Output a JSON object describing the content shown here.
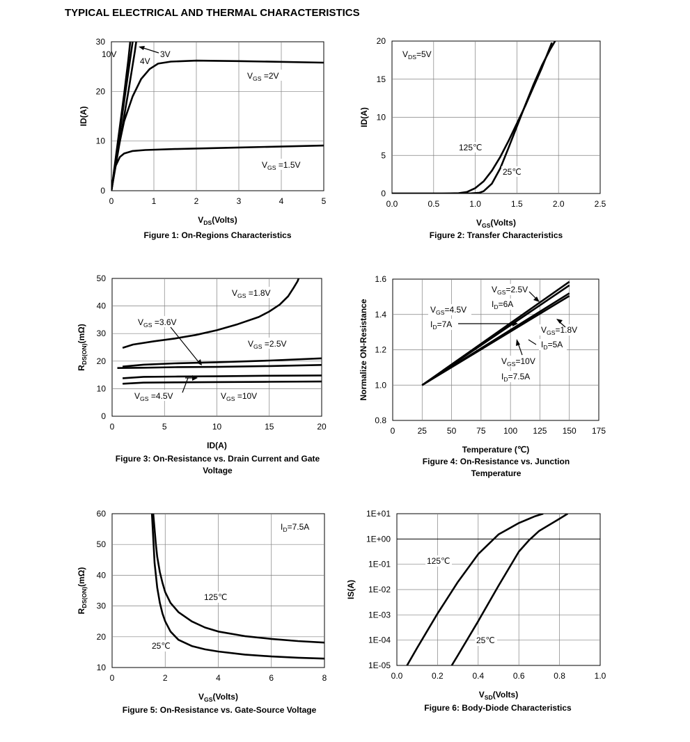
{
  "page_title": "TYPICAL ELECTRICAL AND THERMAL CHARACTERISTICS",
  "chart_data": [
    {
      "id": "fig1",
      "type": "line",
      "caption": "Figure 1: On-Regions Characteristics",
      "xlabel": "VDS(Volts)",
      "ylabel": "ID(A)",
      "xlim": [
        0,
        5
      ],
      "ylim": [
        0,
        30
      ],
      "xticks": [
        "0",
        "1",
        "2",
        "3",
        "4",
        "5"
      ],
      "yticks": [
        "0",
        "10",
        "20",
        "30"
      ],
      "grid": true,
      "series": [
        {
          "name": "VGS =1.5V",
          "x": [
            0,
            0.05,
            0.1,
            0.2,
            0.3,
            0.5,
            0.8,
            1.5,
            3,
            5
          ],
          "y": [
            0,
            3,
            5,
            6.8,
            7.5,
            8,
            8.2,
            8.4,
            8.7,
            9.1
          ]
        },
        {
          "name": "VGS =2V",
          "x": [
            0,
            0.15,
            0.3,
            0.5,
            0.7,
            0.9,
            1.1,
            1.4,
            2,
            3,
            5
          ],
          "y": [
            0,
            8,
            14,
            19,
            22.5,
            24.5,
            25.6,
            26,
            26.2,
            26.1,
            25.8
          ]
        },
        {
          "name": "3V",
          "x": [
            0,
            0.1,
            0.2,
            0.3,
            0.4,
            0.55,
            0.6
          ],
          "y": [
            0,
            5,
            10,
            15,
            20,
            28,
            31
          ]
        },
        {
          "name": "4V",
          "x": [
            0,
            0.1,
            0.2,
            0.3,
            0.4,
            0.5,
            0.55
          ],
          "y": [
            0,
            6,
            12,
            18,
            24,
            30,
            32
          ]
        },
        {
          "name": "10V",
          "x": [
            0,
            0.1,
            0.2,
            0.3,
            0.4,
            0.45
          ],
          "y": [
            0,
            6.5,
            13,
            19.5,
            26.5,
            30.5
          ]
        }
      ],
      "annotations": [
        "10V",
        "4V",
        "3V",
        "VGS =2V",
        "VGS =1.5V"
      ]
    },
    {
      "id": "fig2",
      "type": "line",
      "caption": "Figure 2: Transfer Characteristics",
      "xlabel": "VGS(Volts)",
      "ylabel": "ID(A)",
      "xlim": [
        0,
        2.5
      ],
      "ylim": [
        0,
        20
      ],
      "xticks": [
        "0.0",
        "0.5",
        "1.0",
        "1.5",
        "2.0",
        "2.5"
      ],
      "yticks": [
        "0",
        "5",
        "10",
        "15",
        "20"
      ],
      "grid": true,
      "series": [
        {
          "name": "125℃",
          "x": [
            0,
            0.6,
            0.8,
            0.9,
            1.0,
            1.1,
            1.2,
            1.3,
            1.4,
            1.5,
            1.6,
            1.7,
            1.8,
            1.92
          ],
          "y": [
            0,
            0,
            0.05,
            0.2,
            0.7,
            1.6,
            3.0,
            4.8,
            6.9,
            9.2,
            11.5,
            14.0,
            16.5,
            19.8
          ]
        },
        {
          "name": "25℃",
          "x": [
            0,
            0.8,
            0.95,
            1.05,
            1.1,
            1.2,
            1.3,
            1.4,
            1.5,
            1.6,
            1.7,
            1.8,
            1.9,
            1.98
          ],
          "y": [
            0,
            0,
            0.02,
            0.1,
            0.3,
            1.3,
            3.3,
            6.0,
            8.8,
            11.6,
            14.3,
            16.8,
            18.9,
            20.4
          ]
        }
      ],
      "annotations": [
        "VDS=5V",
        "125℃",
        "25℃"
      ]
    },
    {
      "id": "fig3",
      "type": "line",
      "caption": "Figure 3: On-Resistance vs. Drain Current and Gate Voltage",
      "xlabel": "ID(A)",
      "ylabel": "RDS(ON)(mΩ)",
      "xlim": [
        0,
        20
      ],
      "ylim": [
        0,
        50
      ],
      "xticks": [
        "0",
        "5",
        "10",
        "15",
        "20"
      ],
      "yticks": [
        "0",
        "10",
        "20",
        "30",
        "40",
        "50"
      ],
      "grid": true,
      "series": [
        {
          "name": "VGS =1.8V",
          "x": [
            1,
            2,
            4,
            6,
            8,
            10,
            12,
            14,
            15,
            16,
            16.8,
            17.3,
            17.7,
            18
          ],
          "y": [
            24.8,
            26,
            27.2,
            28.2,
            29.5,
            31.2,
            33.4,
            36,
            38,
            40.5,
            43.5,
            46.5,
            49,
            52
          ]
        },
        {
          "name": "VGS =2.5V",
          "x": [
            1,
            3,
            6,
            10,
            15,
            20
          ],
          "y": [
            18,
            18.7,
            19.2,
            19.6,
            20.2,
            21
          ]
        },
        {
          "name": "VGS =3.6V",
          "x": [
            0.5,
            3,
            6,
            10,
            15,
            20
          ],
          "y": [
            17.5,
            17.6,
            17.8,
            17.9,
            18.2,
            18.6
          ]
        },
        {
          "name": "VGS =4.5V",
          "x": [
            1,
            3,
            6,
            10,
            15,
            20
          ],
          "y": [
            13.8,
            14.3,
            14.4,
            14.5,
            14.7,
            14.8
          ]
        },
        {
          "name": "VGS =10V",
          "x": [
            1,
            3,
            6,
            10,
            15,
            20
          ],
          "y": [
            11.8,
            12.2,
            12.3,
            12.4,
            12.5,
            12.6
          ]
        }
      ],
      "annotations": [
        "VGS =1.8V",
        "VGS =3.6V",
        "VGS =2.5V",
        "VGS =4.5V",
        "VGS =10V"
      ]
    },
    {
      "id": "fig4",
      "type": "line",
      "caption": "Figure 4: On-Resistance vs. Junction Temperature",
      "xlabel": "Temperature (℃)",
      "ylabel": "Normalize ON-Resistance",
      "xlim": [
        0,
        175
      ],
      "ylim": [
        0.8,
        1.6
      ],
      "xticks": [
        "0",
        "25",
        "50",
        "75",
        "100",
        "125",
        "150",
        "175"
      ],
      "yticks": [
        "0.8",
        "1.0",
        "1.2",
        "1.4",
        "1.6"
      ],
      "grid": true,
      "series": [
        {
          "name": "VGS=2.5V ID=6A",
          "x": [
            25,
            150
          ],
          "y": [
            1.0,
            1.585
          ]
        },
        {
          "name": "VGS=4.5V ID=7A",
          "x": [
            25,
            150
          ],
          "y": [
            1.0,
            1.565
          ]
        },
        {
          "name": "VGS=1.8V ID=5A",
          "x": [
            25,
            150
          ],
          "y": [
            1.0,
            1.52
          ]
        },
        {
          "name": "VGS=10V ID=7.5A",
          "x": [
            25,
            150
          ],
          "y": [
            1.0,
            1.505
          ]
        }
      ],
      "annotations": [
        "VGS=2.5V",
        "ID=6A",
        "VGS=4.5V",
        "ID=7A",
        "VGS=1.8V",
        "ID=5A",
        "VGS=10V",
        "ID=7.5A"
      ]
    },
    {
      "id": "fig5",
      "type": "line",
      "caption": "Figure 5: On-Resistance vs. Gate-Source Voltage",
      "xlabel": "VGS(Volts)",
      "ylabel": "RDS(ON)(mΩ)",
      "xlim": [
        0,
        8
      ],
      "ylim": [
        10,
        60
      ],
      "xticks": [
        "0",
        "2",
        "4",
        "6",
        "8"
      ],
      "yticks": [
        "10",
        "20",
        "30",
        "40",
        "50",
        "60"
      ],
      "grid": true,
      "series": [
        {
          "name": "125℃",
          "x": [
            1.55,
            1.6,
            1.65,
            1.7,
            1.8,
            1.9,
            2.0,
            2.2,
            2.5,
            3,
            3.5,
            4,
            5,
            6,
            7,
            8
          ],
          "y": [
            60,
            55,
            50,
            46,
            41,
            37.5,
            34.5,
            31,
            28,
            25,
            23,
            21.7,
            20.2,
            19.3,
            18.6,
            18.1
          ]
        },
        {
          "name": "25℃",
          "x": [
            1.5,
            1.55,
            1.6,
            1.7,
            1.8,
            1.9,
            2.0,
            2.2,
            2.5,
            3,
            3.5,
            4,
            5,
            6,
            7,
            8
          ],
          "y": [
            60,
            52,
            44,
            36,
            31,
            27.5,
            25,
            21.7,
            19,
            17,
            15.9,
            15.2,
            14.2,
            13.6,
            13.2,
            12.9
          ]
        }
      ],
      "annotations": [
        "ID=7.5A",
        "125℃",
        "25℃"
      ]
    },
    {
      "id": "fig6",
      "type": "line",
      "caption": "Figure 6: Body-Diode Characteristics",
      "xlabel": "VSD(Volts)",
      "ylabel": "IS(A)",
      "xlim": [
        0,
        1.0
      ],
      "ylim": [
        -5,
        1
      ],
      "yscale": "log",
      "xticks": [
        "0.0",
        "0.2",
        "0.4",
        "0.6",
        "0.8",
        "1.0"
      ],
      "yticks": [
        "1E-05",
        "1E-04",
        "1E-03",
        "1E-02",
        "1E-01",
        "1E+00",
        "1E+01"
      ],
      "grid": true,
      "series": [
        {
          "name": "125℃",
          "x": [
            0.05,
            0.1,
            0.2,
            0.3,
            0.4,
            0.5,
            0.6,
            0.68,
            0.72
          ],
          "y": [
            -5,
            -4.3,
            -2.95,
            -1.7,
            -0.6,
            0.18,
            0.63,
            0.9,
            1.0
          ]
        },
        {
          "name": "25℃",
          "x": [
            0.27,
            0.3,
            0.4,
            0.5,
            0.6,
            0.65,
            0.7,
            0.8,
            0.84
          ],
          "y": [
            -5,
            -4.6,
            -3.25,
            -1.85,
            -0.5,
            -0.05,
            0.32,
            0.8,
            1.0
          ]
        }
      ],
      "annotations": [
        "125℃",
        "25℃"
      ]
    }
  ]
}
